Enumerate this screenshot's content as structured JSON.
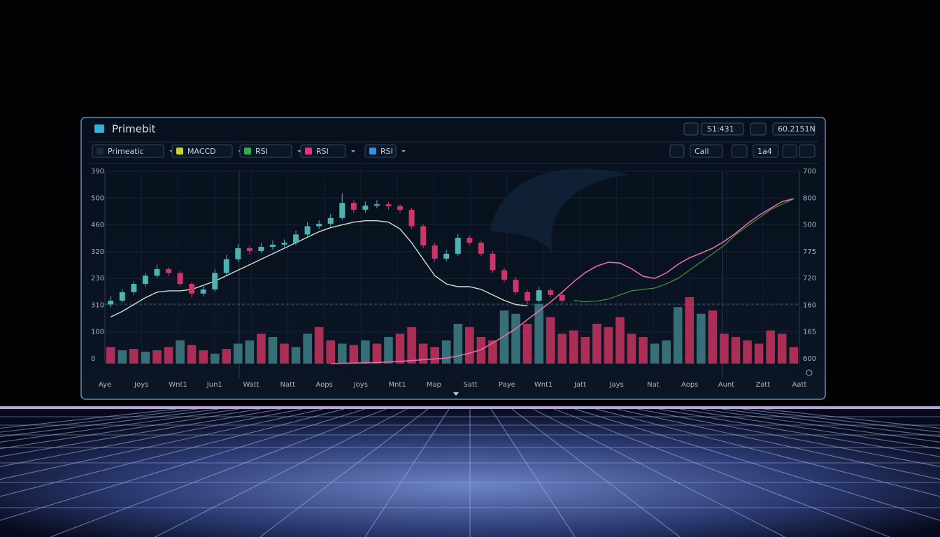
{
  "header": {
    "title": "Primebit",
    "pair": "S1:431",
    "balance": "60.2151N"
  },
  "toolbar": {
    "items": [
      "Primeatic",
      "MACCD",
      "RSI",
      "RSI",
      "RSI"
    ],
    "right": [
      "Call",
      "1a4"
    ]
  },
  "chart_data": {
    "type": "candlestick",
    "left_labels": [
      "390",
      "500",
      "460",
      "320",
      "230",
      "310",
      "100",
      "0"
    ],
    "right_labels": [
      "700",
      "800",
      "500",
      "775",
      "720",
      "160",
      "165",
      "600"
    ],
    "x_labels": [
      "Aye",
      "Joys",
      "Wnt1",
      "Jun1",
      "Watt",
      "Natt",
      "Aops",
      "Joys",
      "Mnt1",
      "Map",
      "Satt",
      "Paye",
      "Wnt1",
      "Jatt",
      "Jays",
      "Nat",
      "Aops",
      "Aunt",
      "Zatt",
      "Aatt"
    ],
    "slots": 60,
    "ylim": [
      0,
      700
    ],
    "volume_lim": [
      0,
      100
    ],
    "up_color": "#4fb3b0",
    "down_color": "#d0356a",
    "candles": [
      [
        215,
        245,
        205,
        229
      ],
      [
        229,
        270,
        222,
        260
      ],
      [
        260,
        300,
        250,
        290
      ],
      [
        290,
        330,
        280,
        320
      ],
      [
        320,
        360,
        312,
        344
      ],
      [
        344,
        352,
        318,
        330
      ],
      [
        330,
        338,
        280,
        290
      ],
      [
        290,
        298,
        240,
        255
      ],
      [
        255,
        285,
        245,
        270
      ],
      [
        270,
        345,
        262,
        330
      ],
      [
        330,
        395,
        322,
        380
      ],
      [
        380,
        435,
        370,
        420
      ],
      [
        420,
        428,
        398,
        410
      ],
      [
        410,
        440,
        402,
        425
      ],
      [
        425,
        448,
        415,
        433
      ],
      [
        433,
        452,
        425,
        440
      ],
      [
        440,
        485,
        430,
        470
      ],
      [
        470,
        515,
        460,
        500
      ],
      [
        500,
        522,
        490,
        509
      ],
      [
        509,
        545,
        500,
        530
      ],
      [
        530,
        620,
        522,
        585
      ],
      [
        585,
        595,
        548,
        560
      ],
      [
        560,
        590,
        550,
        575
      ],
      [
        575,
        595,
        565,
        580
      ],
      [
        580,
        588,
        560,
        573
      ],
      [
        573,
        580,
        548,
        560
      ],
      [
        560,
        568,
        490,
        500
      ],
      [
        500,
        508,
        420,
        430
      ],
      [
        430,
        440,
        370,
        382
      ],
      [
        382,
        415,
        372,
        400
      ],
      [
        400,
        472,
        392,
        458
      ],
      [
        458,
        466,
        430,
        440
      ],
      [
        440,
        448,
        392,
        400
      ],
      [
        400,
        410,
        330,
        340
      ],
      [
        340,
        350,
        295,
        305
      ],
      [
        305,
        315,
        250,
        260
      ],
      [
        260,
        270,
        218,
        229
      ],
      [
        229,
        280,
        222,
        267
      ],
      [
        267,
        275,
        240,
        250
      ],
      [
        250,
        258,
        220,
        229
      ]
    ],
    "ma": [
      170,
      190,
      215,
      240,
      260,
      265,
      265,
      270,
      285,
      300,
      320,
      340,
      360,
      380,
      400,
      420,
      440,
      460,
      480,
      495,
      505,
      515,
      520,
      520,
      515,
      490,
      440,
      380,
      320,
      290,
      280,
      280,
      270,
      250,
      230,
      215,
      210,
      null,
      null,
      null,
      null,
      null,
      null,
      null,
      null,
      null,
      null,
      null,
      null,
      null,
      null,
      null,
      null,
      null,
      null,
      null,
      null,
      null,
      null,
      null
    ],
    "ma_color": "#cfe3c8",
    "pink": [
      null,
      null,
      null,
      null,
      null,
      null,
      null,
      null,
      null,
      null,
      null,
      null,
      null,
      null,
      null,
      null,
      null,
      null,
      null,
      0,
      1,
      2,
      3,
      4,
      6,
      8,
      11,
      14,
      17,
      20,
      28,
      38,
      51,
      75,
      100,
      127,
      160,
      192,
      224,
      260,
      298,
      331,
      355,
      369,
      366,
      345,
      318,
      310,
      330,
      361,
      385,
      402,
      420,
      445,
      475,
      509,
      540,
      565,
      590,
      600
    ],
    "pink_color": "#e86aa8",
    "green": [
      null,
      null,
      null,
      null,
      null,
      null,
      null,
      null,
      null,
      null,
      null,
      null,
      null,
      null,
      null,
      null,
      null,
      null,
      null,
      null,
      null,
      null,
      null,
      null,
      null,
      null,
      null,
      null,
      null,
      null,
      null,
      null,
      null,
      null,
      null,
      null,
      null,
      null,
      null,
      null,
      230,
      225,
      228,
      235,
      250,
      265,
      270,
      275,
      290,
      310,
      340,
      370,
      400,
      430,
      470,
      500,
      530,
      560,
      580,
      600
    ],
    "green_color": "#3f9a3a",
    "volume": [
      25,
      20,
      22,
      18,
      20,
      25,
      35,
      28,
      20,
      15,
      22,
      30,
      35,
      45,
      40,
      30,
      25,
      45,
      55,
      35,
      30,
      28,
      35,
      30,
      40,
      45,
      55,
      30,
      25,
      35,
      60,
      55,
      40,
      35,
      80,
      75,
      60,
      90,
      70,
      45,
      50,
      40,
      60,
      55,
      70,
      45,
      40,
      30,
      35,
      85,
      100,
      75,
      80,
      45,
      40,
      35,
      30,
      50,
      45,
      25
    ],
    "volume_colors": [
      "#c8325f",
      "#3f7f86",
      "#c8325f",
      "#3f7f86",
      "#c8325f",
      "#c8325f",
      "#3f7f86",
      "#c8325f",
      "#c8325f",
      "#3f7f86",
      "#c8325f",
      "#3f7f86",
      "#3f7f86",
      "#c8325f",
      "#3f7f86",
      "#c8325f",
      "#3f7f86",
      "#3f7f86",
      "#c8325f",
      "#c8325f",
      "#3f7f86",
      "#c8325f",
      "#3f7f86",
      "#c8325f",
      "#3f7f86",
      "#c8325f",
      "#c8325f",
      "#c8325f",
      "#c8325f",
      "#3f7f86",
      "#3f7f86",
      "#c8325f",
      "#c8325f",
      "#c8325f",
      "#3f7f86",
      "#3f7f86",
      "#c8325f",
      "#3f7f86",
      "#c8325f",
      "#c8325f",
      "#c8325f",
      "#c8325f",
      "#c8325f",
      "#c8325f",
      "#c8325f",
      "#c8325f",
      "#c8325f",
      "#3f7f86",
      "#3f7f86",
      "#3f7f86",
      "#c8325f",
      "#3f7f86",
      "#c8325f",
      "#c8325f",
      "#c8325f",
      "#c8325f",
      "#c8325f",
      "#c8325f",
      "#c8325f",
      "#c8325f"
    ]
  }
}
